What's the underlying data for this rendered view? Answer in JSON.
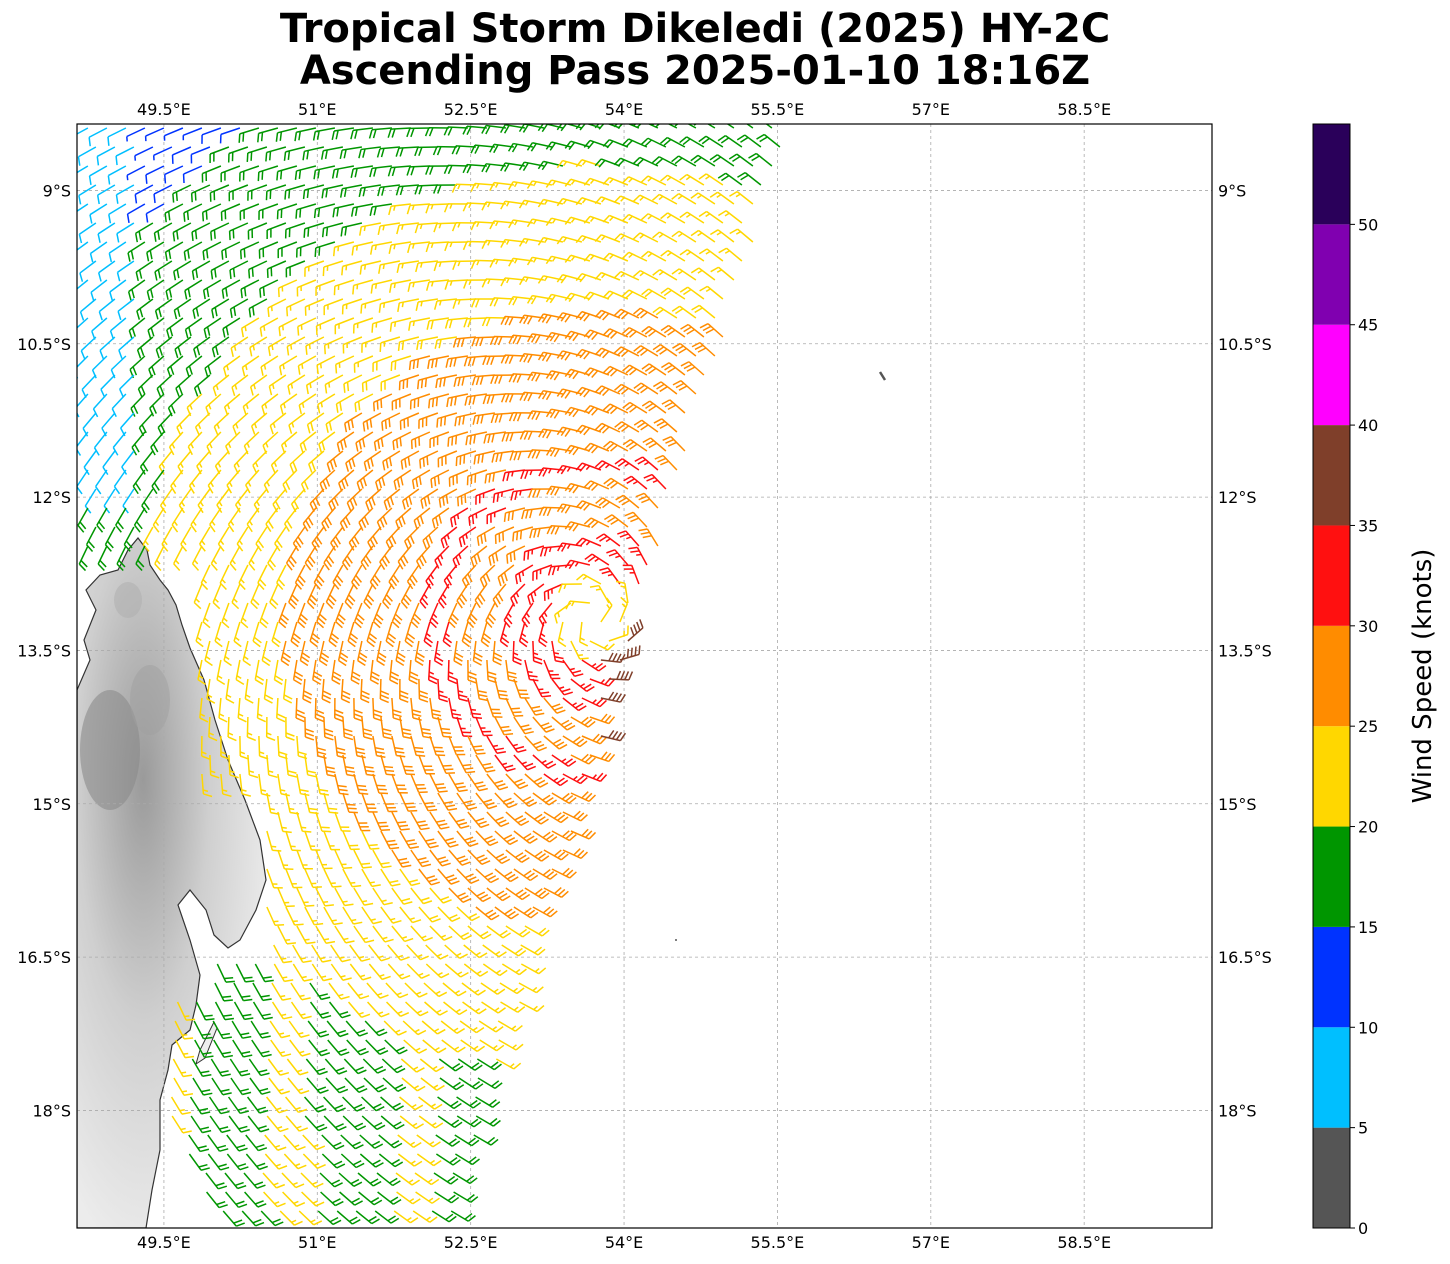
{
  "title_line1": "Tropical Storm Dikeledi (2025) HY-2C",
  "title_line2": "Ascending Pass 2025-01-10 18:16Z",
  "map": {
    "lon_range": [
      48.65,
      59.75
    ],
    "lat_range": [
      -19.15,
      -8.35
    ],
    "lon_ticks": [
      "49.5°E",
      "51°E",
      "52.5°E",
      "54°E",
      "55.5°E",
      "57°E",
      "58.5°E"
    ],
    "lon_tick_values": [
      49.5,
      51.0,
      52.5,
      54.0,
      55.5,
      57.0,
      58.5
    ],
    "lat_ticks": [
      "9°S",
      "10.5°S",
      "12°S",
      "13.5°S",
      "15°S",
      "16.5°S",
      "18°S"
    ],
    "lat_tick_values": [
      -9.0,
      -10.5,
      -12.0,
      -13.5,
      -15.0,
      -16.5,
      -18.0
    ],
    "gridlines": true,
    "storm_center_approx": {
      "lon": 53.7,
      "lat": -13.2
    }
  },
  "colorbar": {
    "label": "Wind Speed (knots)",
    "tick_labels": [
      "0",
      "5",
      "10",
      "15",
      "20",
      "25",
      "30",
      "35",
      "40",
      "45",
      "50"
    ],
    "bins": [
      {
        "min": 0,
        "max": 5,
        "color": "#555555"
      },
      {
        "min": 5,
        "max": 10,
        "color": "#00bfff"
      },
      {
        "min": 10,
        "max": 15,
        "color": "#0033ff"
      },
      {
        "min": 15,
        "max": 20,
        "color": "#009600"
      },
      {
        "min": 20,
        "max": 25,
        "color": "#ffd700"
      },
      {
        "min": 25,
        "max": 30,
        "color": "#ff8c00"
      },
      {
        "min": 30,
        "max": 35,
        "color": "#ff1010"
      },
      {
        "min": 35,
        "max": 40,
        "color": "#7f3f2a"
      },
      {
        "min": 40,
        "max": 45,
        "color": "#ff00ff"
      },
      {
        "min": 45,
        "max": 50,
        "color": "#8000b0"
      },
      {
        "min": 50,
        "max": 55,
        "color": "#2a005a"
      }
    ]
  }
}
